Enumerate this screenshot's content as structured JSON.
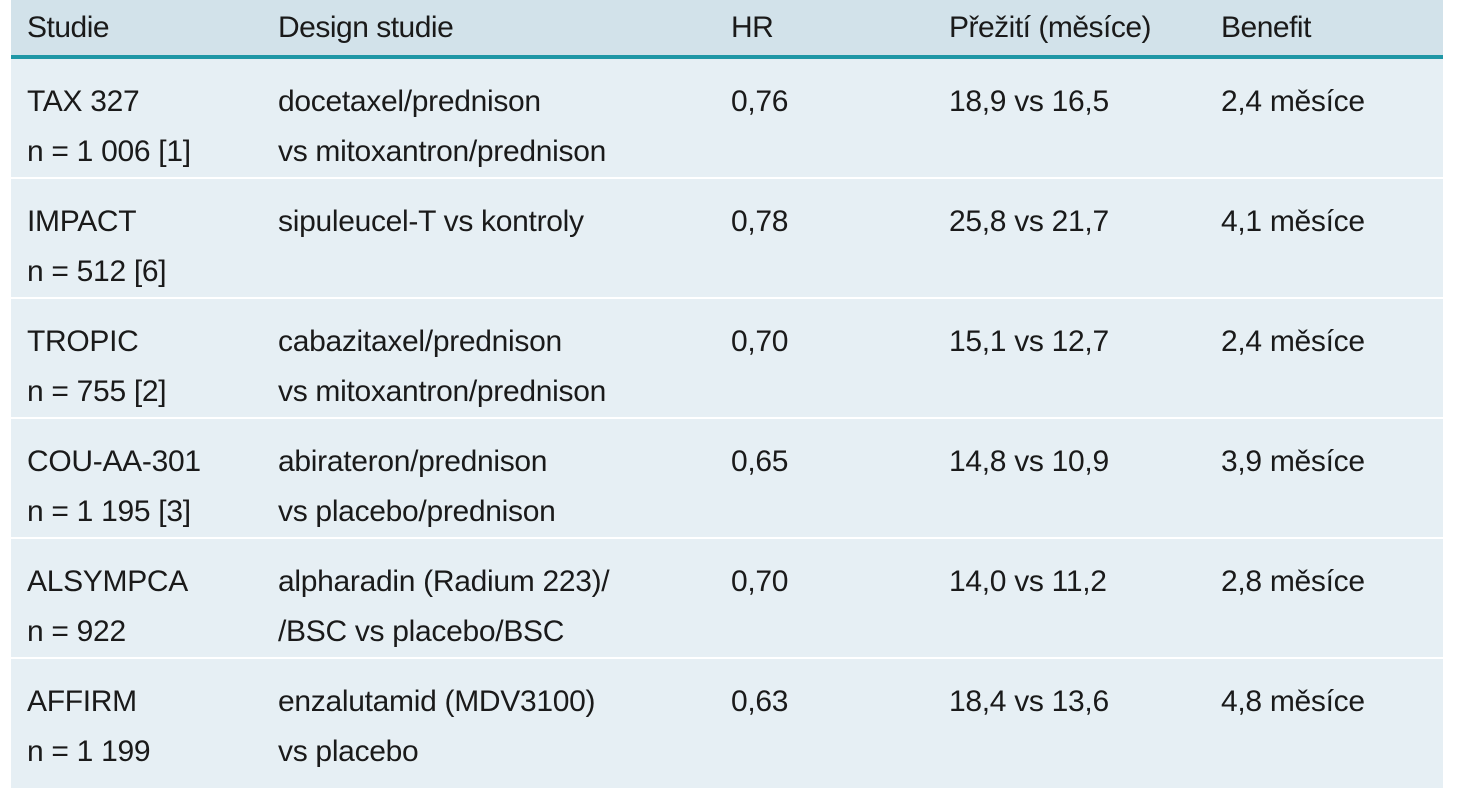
{
  "table": {
    "headers": [
      "Studie",
      "Design studie",
      "HR",
      "Přežití (měsíce)",
      "Benefit"
    ],
    "rows": [
      {
        "study": [
          "TAX 327",
          "n = 1 006 [1]"
        ],
        "design": [
          "docetaxel/prednison",
          "vs mitoxantron/prednison"
        ],
        "hr": "0,76",
        "survival": "18,9 vs 16,5",
        "benefit": "2,4 měsíce"
      },
      {
        "study": [
          "IMPACT",
          "n = 512 [6]"
        ],
        "design": [
          "sipuleucel-T vs kontroly",
          ""
        ],
        "hr": "0,78",
        "survival": "25,8 vs 21,7",
        "benefit": "4,1 měsíce"
      },
      {
        "study": [
          "TROPIC",
          "n = 755 [2]"
        ],
        "design": [
          "cabazitaxel/prednison",
          "vs mitoxantron/prednison"
        ],
        "hr": "0,70",
        "survival": "15,1 vs 12,7",
        "benefit": "2,4 měsíce"
      },
      {
        "study": [
          "COU-AA-301",
          "n = 1 195 [3]"
        ],
        "design": [
          "abirateron/prednison",
          "vs placebo/prednison"
        ],
        "hr": "0,65",
        "survival": "14,8 vs 10,9",
        "benefit": "3,9 měsíce"
      },
      {
        "study": [
          "ALSYMPCA",
          "n = 922"
        ],
        "design": [
          "alpharadin (Radium 223)/",
          "/BSC vs placebo/BSC"
        ],
        "hr": "0,70",
        "survival": "14,0 vs 11,2",
        "benefit": "2,8 měsíce"
      },
      {
        "study": [
          "AFFIRM",
          "n = 1 199"
        ],
        "design": [
          "enzalutamid (MDV3100)",
          "vs placebo"
        ],
        "hr": "0,63",
        "survival": "18,4 vs 13,6",
        "benefit": "4,8 měsíce"
      }
    ]
  },
  "colors": {
    "header_bg": "#d2e2ea",
    "body_bg": "#e6eff4",
    "header_rule": "#1f97a6",
    "row_separator": "#ffffff"
  }
}
